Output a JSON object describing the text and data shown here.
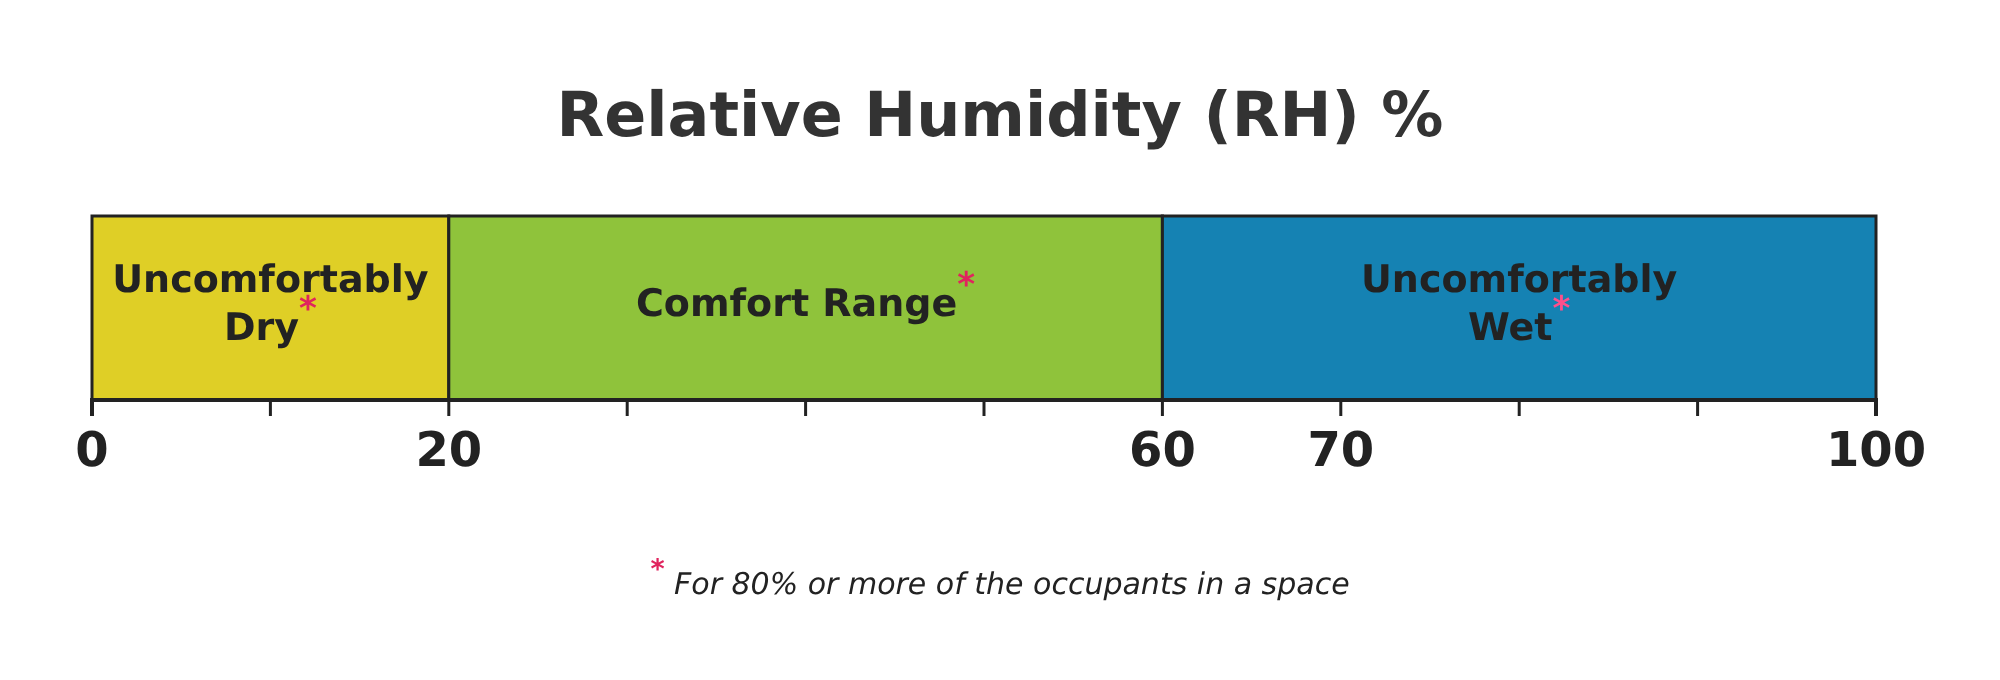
{
  "chart_data": {
    "type": "bar",
    "orientation": "horizontal",
    "stacked": true,
    "title": "Relative Humidity (RH) %",
    "categories": [
      null
    ],
    "series": [
      {
        "name": "Uncomfortably\nDry$^{*}$",
        "color": "#dfcf26",
        "values": [
          20
        ]
      },
      {
        "name": "Comfort Range$^{*}$",
        "color": "#8fc33b",
        "values": [
          40
        ]
      },
      {
        "name": "Uncomfortably\nWet$^{*}$",
        "color": "#1582b3",
        "values": [
          40
        ]
      }
    ],
    "xlim": [
      0,
      100
    ],
    "xticks": [
      0,
      {
        "value": 10,
        "label": null
      },
      20,
      {
        "value": 30,
        "label": null
      },
      {
        "value": 40,
        "label": null
      },
      {
        "value": 50,
        "label": null
      },
      60,
      70,
      {
        "value": 80,
        "label": null
      },
      {
        "value": 90,
        "label": null
      },
      100
    ],
    "tick_labels": "x",
    "annotations": [
      "$^{*}$ For 80% or more of the occupants in a space"
    ]
  }
}
